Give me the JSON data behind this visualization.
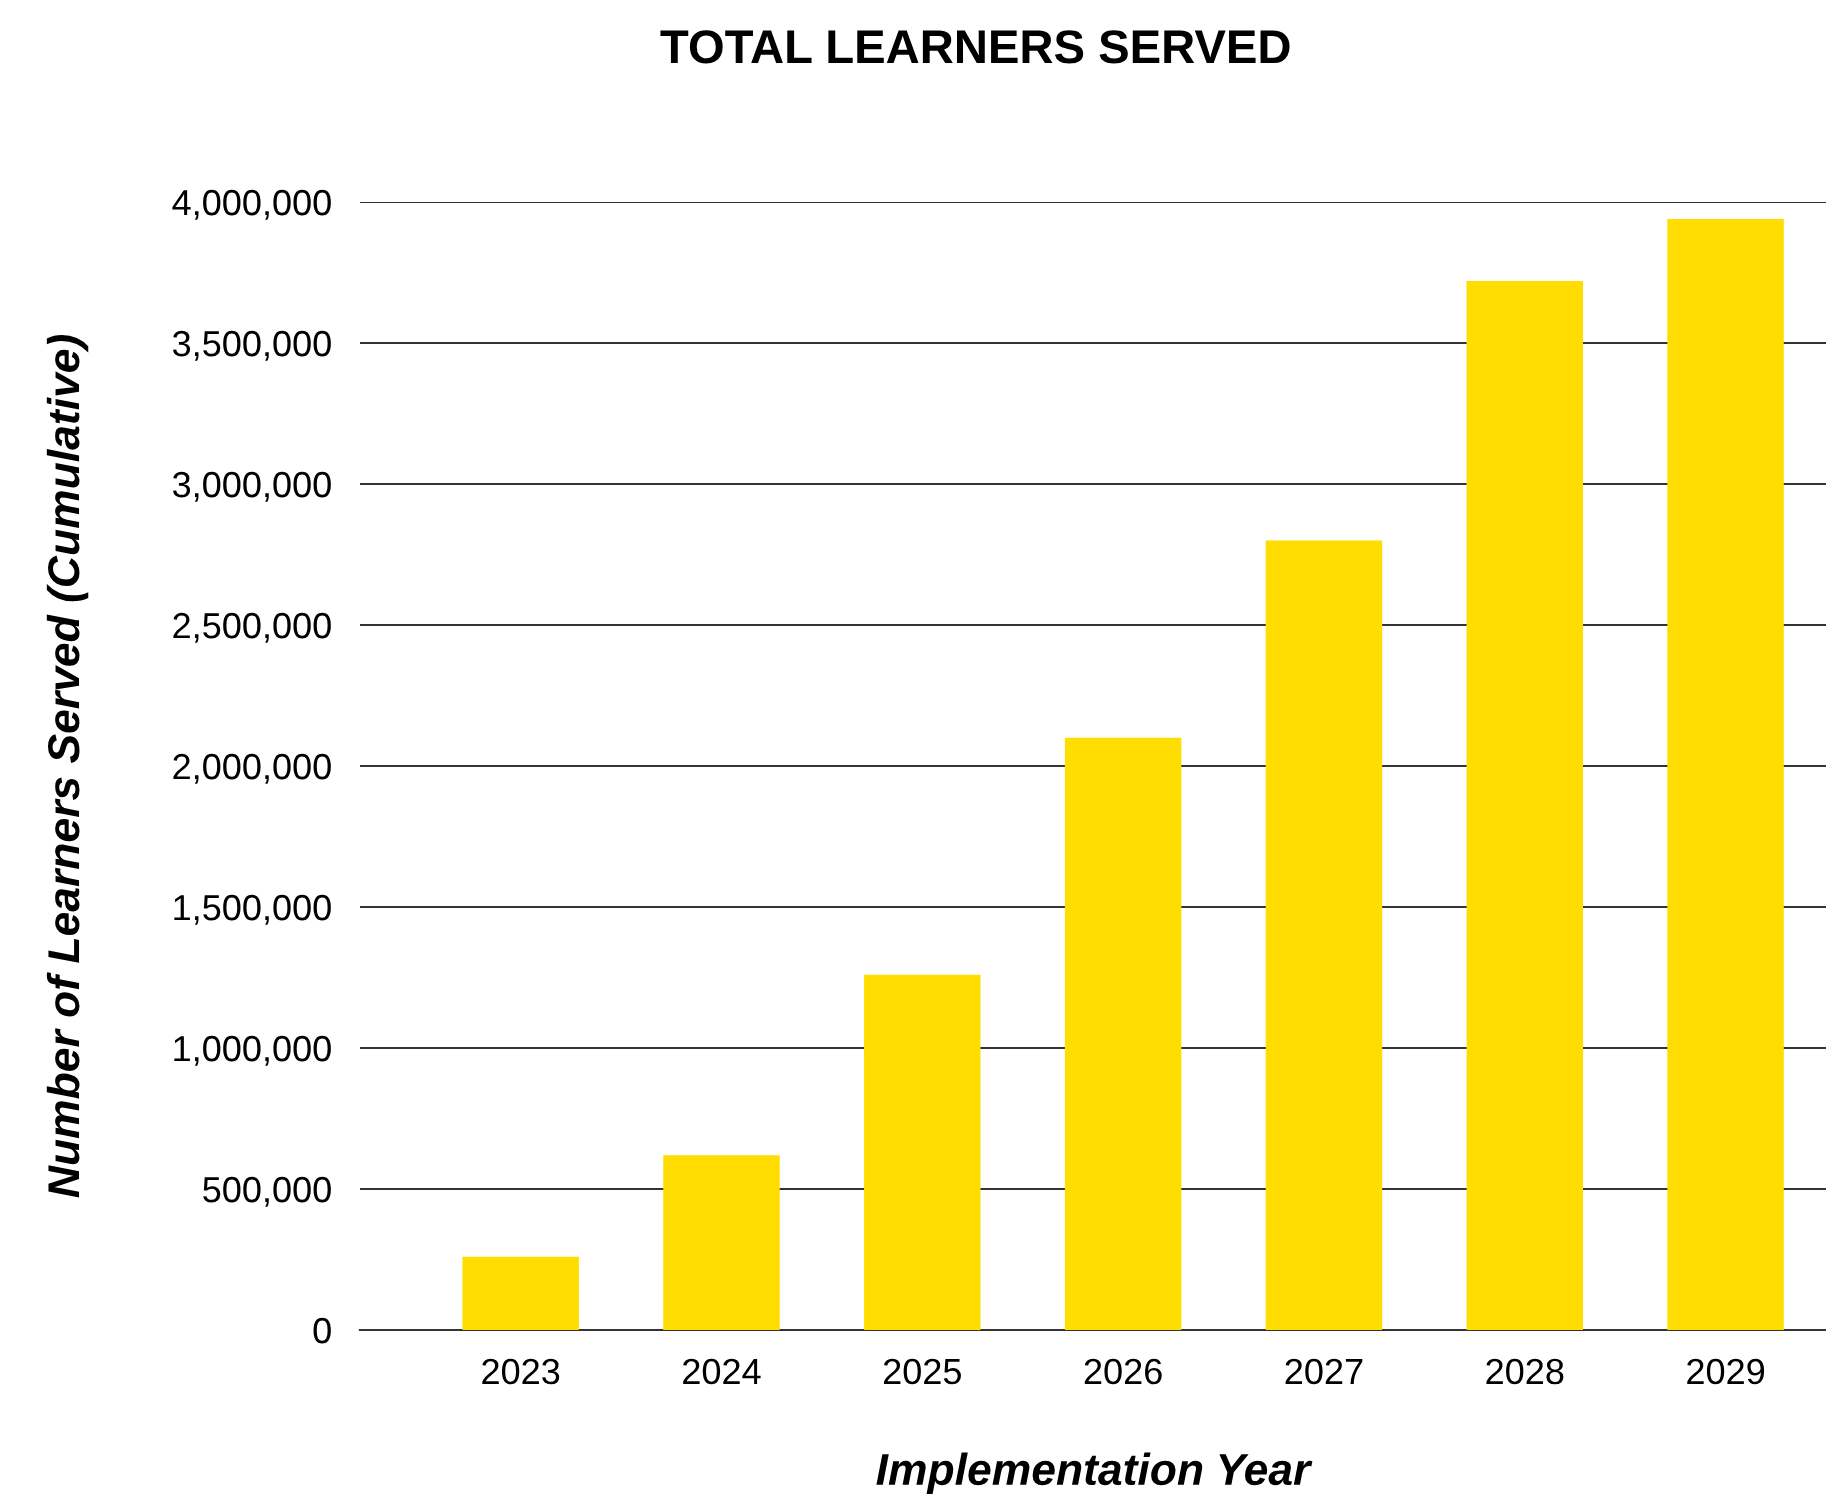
{
  "chart_data": {
    "type": "bar",
    "title": "TOTAL LEARNERS SERVED",
    "xlabel": "Implementation Year",
    "ylabel": "Number of Learners Served (Cumulative)",
    "categories": [
      "2023",
      "2024",
      "2025",
      "2026",
      "2027",
      "2028",
      "2029"
    ],
    "values": [
      260000,
      620000,
      1260000,
      2100000,
      2800000,
      3720000,
      3940000
    ],
    "color": "#ffdd00",
    "ylim": [
      0,
      4000000
    ],
    "yticks": [
      {
        "value": 0,
        "label": "0"
      },
      {
        "value": 500000,
        "label": "500,000"
      },
      {
        "value": 1000000,
        "label": "1,000,000"
      },
      {
        "value": 1500000,
        "label": "1,500,000"
      },
      {
        "value": 2000000,
        "label": "2,000,000"
      },
      {
        "value": 2500000,
        "label": "2,500,000"
      },
      {
        "value": 3000000,
        "label": "3,000,000"
      },
      {
        "value": 3500000,
        "label": "3,500,000"
      },
      {
        "value": 4000000,
        "label": "4,000,000"
      }
    ],
    "grid": "y",
    "legend": false
  }
}
